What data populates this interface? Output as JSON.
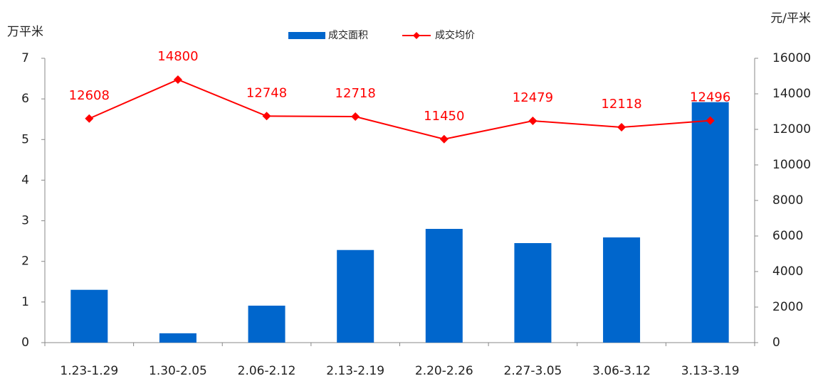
{
  "chart_data": {
    "type": "bar_line",
    "ylabel": "万平米",
    "y2label": "元/平米",
    "categories": [
      "1.23-1.29",
      "1.30-2.05",
      "2.06-2.12",
      "2.13-2.19",
      "2.20-2.26",
      "2.27-3.05",
      "3.06-3.12",
      "3.13-3.19"
    ],
    "series": [
      {
        "name": "成交面积",
        "type": "bar",
        "color": "#0066cc",
        "axis": "y",
        "values": [
          1.3,
          0.23,
          0.91,
          2.28,
          2.8,
          2.45,
          2.59,
          5.92
        ]
      },
      {
        "name": "成交均价",
        "type": "line",
        "color": "#ff0000",
        "axis": "y2",
        "values": [
          12608,
          14800,
          12748,
          12718,
          11450,
          12479,
          12118,
          12496
        ]
      }
    ],
    "ylim": [
      0,
      7
    ],
    "yticks": [
      0,
      1,
      2,
      3,
      4,
      5,
      6,
      7
    ],
    "y2lim": [
      0,
      16000
    ],
    "y2ticks": [
      0,
      2000,
      4000,
      6000,
      8000,
      10000,
      12000,
      14000,
      16000
    ],
    "legend": "top"
  }
}
